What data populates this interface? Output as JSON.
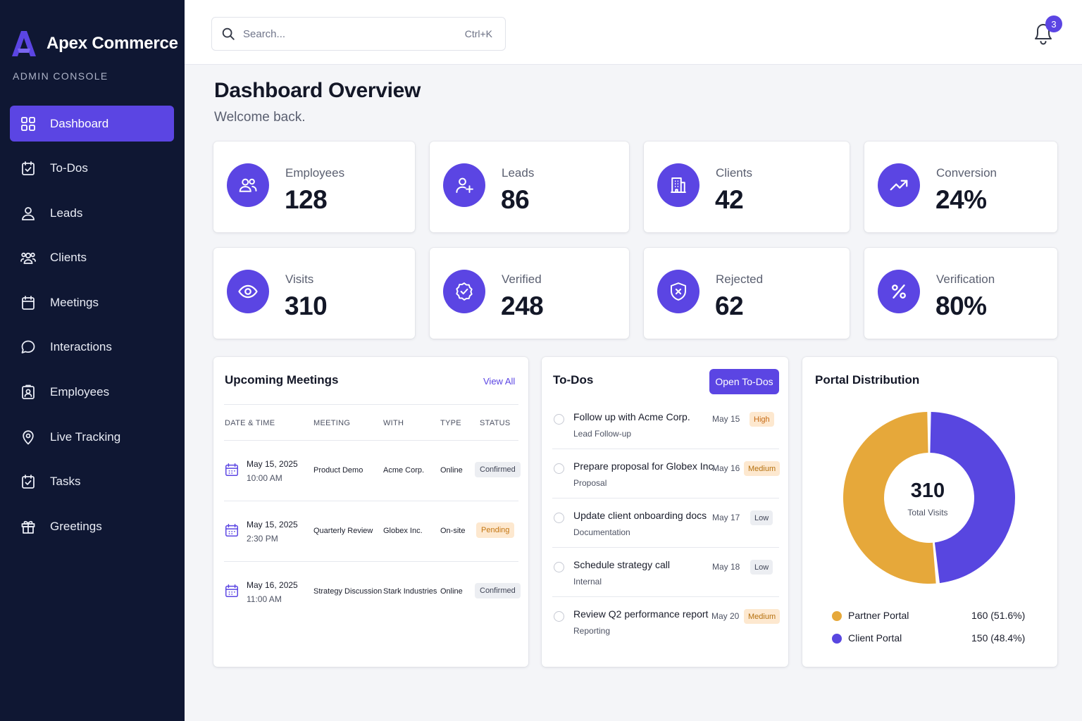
{
  "colors": {
    "sidebar_bg": "#0f1733",
    "accent": "#5b45e3",
    "partner": "#e6a83a",
    "client": "#5846e0"
  },
  "brand": {
    "name": "Apex Commerce",
    "subtitle": "ADMIN CONSOLE",
    "logo_icon": "apex-logo"
  },
  "sidebar": {
    "items": [
      {
        "label": "Dashboard",
        "icon": "grid-icon",
        "active": true
      },
      {
        "label": "To-Dos",
        "icon": "calendar-check-icon"
      },
      {
        "label": "Leads",
        "icon": "user-icon"
      },
      {
        "label": "Clients",
        "icon": "users-icon"
      },
      {
        "label": "Meetings",
        "icon": "calendar-icon"
      },
      {
        "label": "Interactions",
        "icon": "chat-icon"
      },
      {
        "label": "Employees",
        "icon": "id-badge-icon"
      },
      {
        "label": "Live Tracking",
        "icon": "map-pin-icon"
      },
      {
        "label": "Tasks",
        "icon": "clipboard-check-icon"
      },
      {
        "label": "Greetings",
        "icon": "gift-icon"
      }
    ]
  },
  "topbar": {
    "search_placeholder": "Search...",
    "search_shortcut": "Ctrl+K",
    "notification_count": "3"
  },
  "header": {
    "title": "Dashboard Overview",
    "subtitle": "Welcome back."
  },
  "stats": [
    {
      "label": "Employees",
      "value": "128",
      "icon": "users-icon"
    },
    {
      "label": "Leads",
      "value": "86",
      "icon": "user-plus-icon"
    },
    {
      "label": "Clients",
      "value": "42",
      "icon": "building-icon"
    },
    {
      "label": "Conversion",
      "value": "24%",
      "icon": "trending-up-icon"
    },
    {
      "label": "Visits",
      "value": "310",
      "icon": "eye-icon"
    },
    {
      "label": "Verified",
      "value": "248",
      "icon": "badge-check-icon"
    },
    {
      "label": "Rejected",
      "value": "62",
      "icon": "shield-x-icon"
    },
    {
      "label": "Verification",
      "value": "80%",
      "icon": "percent-icon"
    }
  ],
  "meetings": {
    "title": "Upcoming Meetings",
    "view_all": "View All",
    "columns": [
      "DATE & TIME",
      "MEETING",
      "WITH",
      "TYPE",
      "STATUS"
    ],
    "rows": [
      {
        "date": "May 15, 2025",
        "time": "10:00 AM",
        "meeting": "Product Demo",
        "with": "Acme Corp.",
        "type": "Online",
        "status": "Confirmed"
      },
      {
        "date": "May 15, 2025",
        "time": "2:30 PM",
        "meeting": "Quarterly Review",
        "with": "Globex Inc.",
        "type": "On-site",
        "status": "Pending"
      },
      {
        "date": "May 16, 2025",
        "time": "11:00 AM",
        "meeting": "Strategy Discussion",
        "with": "Stark Industries",
        "type": "Online",
        "status": "Confirmed"
      }
    ]
  },
  "todos": {
    "title": "To-Dos",
    "button": "Open To-Dos",
    "items": [
      {
        "title": "Follow up with Acme Corp.",
        "category": "Lead Follow-up",
        "date": "May 15",
        "priority": "High"
      },
      {
        "title": "Prepare proposal for Globex Inc.",
        "category": "Proposal",
        "date": "May 16",
        "priority": "Medium"
      },
      {
        "title": "Update client onboarding docs",
        "category": "Documentation",
        "date": "May 17",
        "priority": "Low"
      },
      {
        "title": "Schedule strategy call",
        "category": "Internal",
        "date": "May 18",
        "priority": "Low"
      },
      {
        "title": "Review Q2 performance report",
        "category": "Reporting",
        "date": "May 20",
        "priority": "Medium"
      }
    ]
  },
  "portal": {
    "title": "Portal Distribution",
    "center_value": "310",
    "center_label": "Total Visits",
    "legend": [
      {
        "name": "Partner Portal",
        "value": "160 (51.6%)"
      },
      {
        "name": "Client Portal",
        "value": "150 (48.4%)"
      }
    ]
  },
  "chart_data": {
    "type": "pie",
    "title": "Portal Distribution",
    "categories": [
      "Partner Portal",
      "Client Portal"
    ],
    "values": [
      160,
      150
    ],
    "total": 310,
    "center_label": "Total Visits",
    "legend_position": "bottom"
  }
}
